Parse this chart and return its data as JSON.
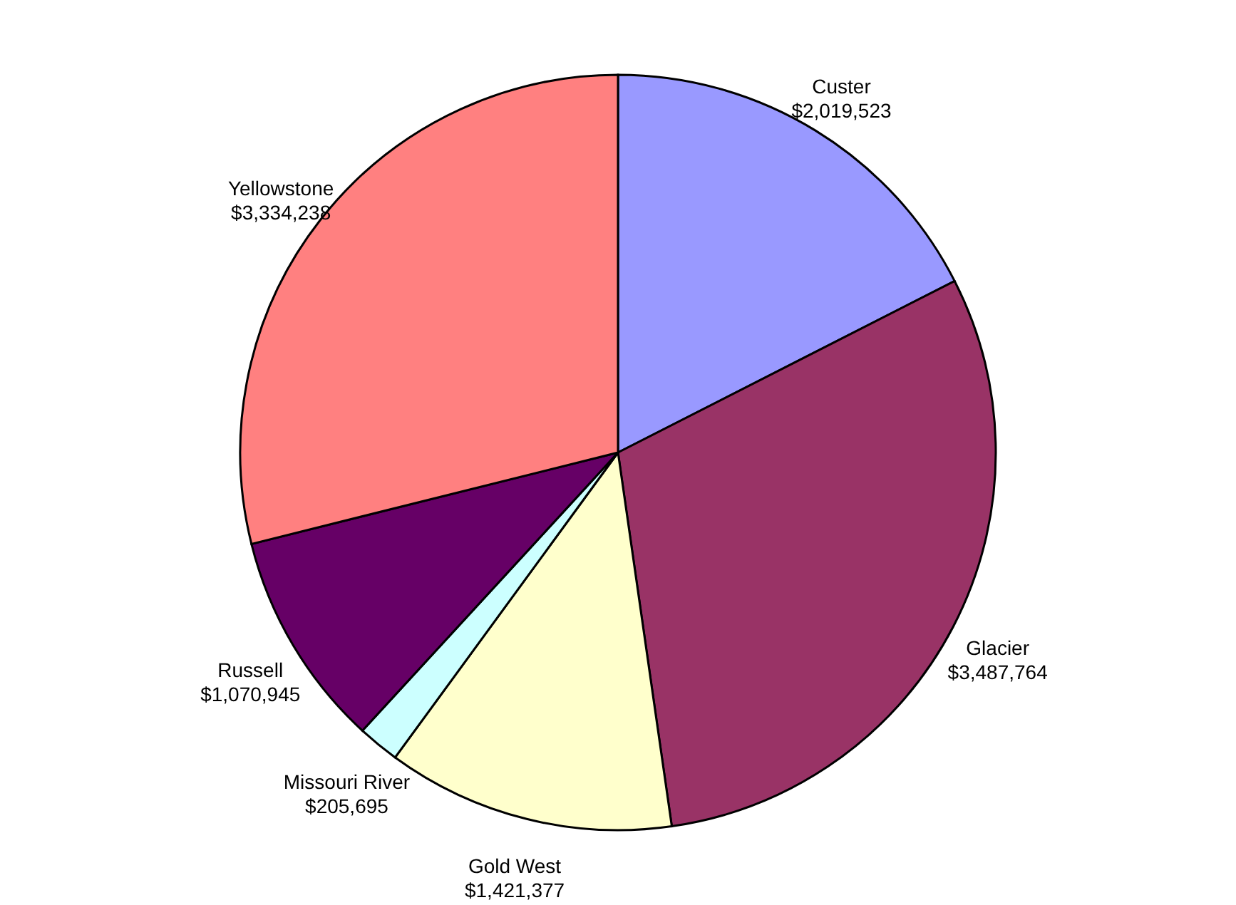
{
  "chart_data": {
    "type": "pie",
    "categories": [
      "Custer",
      "Glacier",
      "Gold West",
      "Missouri River",
      "Russell",
      "Yellowstone"
    ],
    "values": [
      2019523,
      3487764,
      1421377,
      205695,
      1070945,
      3334238
    ],
    "value_labels": [
      "$2,019,523",
      "$3,487,764",
      "$1,421,377",
      "$205,695",
      "$1,070,945",
      "$3,334,238"
    ],
    "colors": [
      "#9999ff",
      "#993366",
      "#ffffcc",
      "#ccffff",
      "#660066",
      "#ff8080"
    ]
  }
}
